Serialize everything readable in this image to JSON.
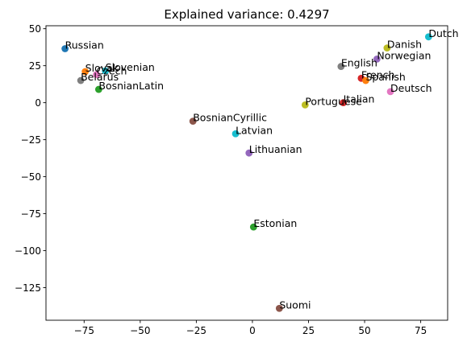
{
  "chart_data": {
    "type": "scatter",
    "title": "Explained variance: 0.4297",
    "xlabel": "",
    "ylabel": "",
    "xlim": [
      -92,
      87
    ],
    "ylim": [
      -147,
      52
    ],
    "xticks": [
      -75,
      -50,
      -25,
      0,
      25,
      50,
      75
    ],
    "yticks": [
      50,
      25,
      0,
      -25,
      -50,
      -75,
      -100,
      -125
    ],
    "xtick_labels": [
      "−75",
      "−50",
      "−25",
      "0",
      "25",
      "50",
      "75"
    ],
    "ytick_labels": [
      "50",
      "25",
      "0",
      "−25",
      "−50",
      "−75",
      "−100",
      "−125"
    ],
    "grid": false,
    "points": [
      {
        "label": "Russian",
        "x": -83.5,
        "y": 36.5,
        "color": "#1f77b4"
      },
      {
        "label": "Slovak",
        "x": -74.5,
        "y": 21,
        "color": "#ff7f0e"
      },
      {
        "label": "Slovenian",
        "x": -65.5,
        "y": 21.5,
        "color": "#17becf"
      },
      {
        "label": "Czech",
        "x": -69.5,
        "y": 19,
        "color": "#e377c2"
      },
      {
        "label": "Belarus",
        "x": -76.5,
        "y": 15,
        "color": "#7f7f7f"
      },
      {
        "label": "BosnianLatin",
        "x": -68.5,
        "y": 9,
        "color": "#2ca02c"
      },
      {
        "label": "BosnianCyrillic",
        "x": -26.5,
        "y": -12.5,
        "color": "#8c564b"
      },
      {
        "label": "Latvian",
        "x": -7.5,
        "y": -21,
        "color": "#17becf"
      },
      {
        "label": "Lithuanian",
        "x": -1.5,
        "y": -34,
        "color": "#9467bd"
      },
      {
        "label": "Estonian",
        "x": 0.5,
        "y": -84,
        "color": "#2ca02c"
      },
      {
        "label": "Suomi",
        "x": 12,
        "y": -139,
        "color": "#8c564b"
      },
      {
        "label": "Portuguese",
        "x": 23.5,
        "y": -1.5,
        "color": "#bcbd22"
      },
      {
        "label": "Italian",
        "x": 40.5,
        "y": 0,
        "color": "#d62728"
      },
      {
        "label": "English",
        "x": 39.5,
        "y": 24.5,
        "color": "#7f7f7f"
      },
      {
        "label": "French",
        "x": 48.5,
        "y": 16.5,
        "color": "#d62728"
      },
      {
        "label": "Spanish",
        "x": 50.5,
        "y": 15,
        "color": "#ff7f0e"
      },
      {
        "label": "Norwegian",
        "x": 55.5,
        "y": 29.5,
        "color": "#9467bd"
      },
      {
        "label": "Danish",
        "x": 60,
        "y": 37,
        "color": "#bcbd22"
      },
      {
        "label": "Deutsch",
        "x": 61.5,
        "y": 7.5,
        "color": "#e377c2"
      },
      {
        "label": "Dutch",
        "x": 78.5,
        "y": 44.5,
        "color": "#17becf"
      }
    ]
  }
}
